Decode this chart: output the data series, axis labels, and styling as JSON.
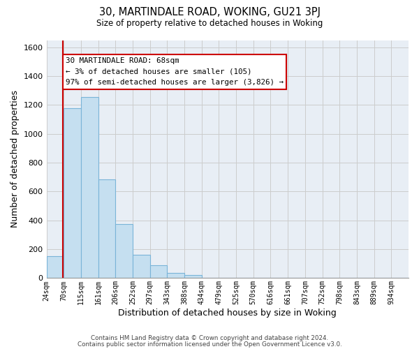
{
  "title": "30, MARTINDALE ROAD, WOKING, GU21 3PJ",
  "subtitle": "Size of property relative to detached houses in Woking",
  "xlabel": "Distribution of detached houses by size in Woking",
  "ylabel": "Number of detached properties",
  "bar_labels": [
    "24sqm",
    "70sqm",
    "115sqm",
    "161sqm",
    "206sqm",
    "252sqm",
    "297sqm",
    "343sqm",
    "388sqm",
    "434sqm",
    "479sqm",
    "525sqm",
    "570sqm",
    "616sqm",
    "661sqm",
    "707sqm",
    "752sqm",
    "798sqm",
    "843sqm",
    "889sqm",
    "934sqm"
  ],
  "bar_values": [
    150,
    1180,
    1255,
    685,
    375,
    160,
    90,
    35,
    20,
    0,
    0,
    0,
    0,
    0,
    0,
    0,
    0,
    0,
    0,
    0,
    0
  ],
  "bar_color": "#c5dff0",
  "bar_edge_color": "#7ab4d8",
  "ylim": [
    0,
    1650
  ],
  "yticks": [
    0,
    200,
    400,
    600,
    800,
    1000,
    1200,
    1400,
    1600
  ],
  "property_line_color": "#cc0000",
  "annotation_title": "30 MARTINDALE ROAD: 68sqm",
  "annotation_line1": "← 3% of detached houses are smaller (105)",
  "annotation_line2": "97% of semi-detached houses are larger (3,826) →",
  "annotation_box_facecolor": "#ffffff",
  "annotation_box_edgecolor": "#cc0000",
  "footer1": "Contains HM Land Registry data © Crown copyright and database right 2024.",
  "footer2": "Contains public sector information licensed under the Open Government Licence v3.0.",
  "grid_color": "#cccccc",
  "plot_bg_color": "#e8eef5",
  "fig_bg_color": "#ffffff",
  "bin_starts": [
    24,
    70,
    115,
    161,
    206,
    252,
    297,
    343,
    388,
    434,
    479,
    525,
    570,
    616,
    661,
    707,
    752,
    798,
    843,
    889,
    934
  ],
  "property_sqm": 68
}
